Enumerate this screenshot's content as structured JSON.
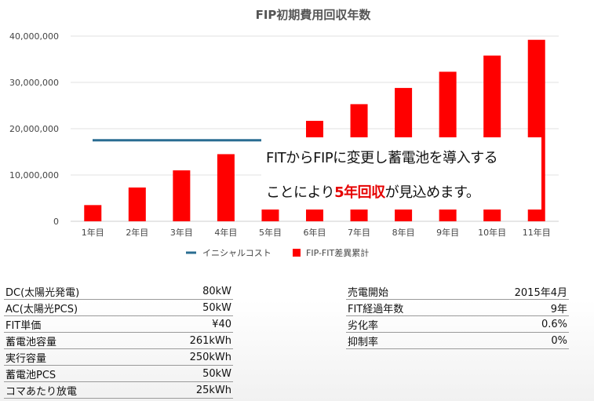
{
  "chart_data": {
    "type": "bar",
    "title": "FIP初期費用回収年数",
    "categories": [
      "1年目",
      "2年目",
      "3年目",
      "4年目",
      "5年目",
      "6年目",
      "7年目",
      "8年目",
      "9年目",
      "10年目",
      "11年目"
    ],
    "series": [
      {
        "name": "FIP-FIT差異累計",
        "type": "bar",
        "color": "#ff0000",
        "values": [
          3500000,
          7300000,
          11000000,
          14500000,
          18100000,
          21700000,
          25300000,
          28800000,
          32300000,
          35800000,
          39200000
        ]
      },
      {
        "name": "イニシャルコスト",
        "type": "line",
        "color": "#2a6d92",
        "value": 17500000
      }
    ],
    "y_ticks": [
      "0",
      "10,000,000",
      "20,000,000",
      "30,000,000",
      "40,000,000"
    ],
    "ylim": [
      0,
      40000000
    ],
    "grid": true,
    "legend_position": "bottom"
  },
  "annotation": {
    "line1": "FITからFIPに変更し蓄電池を導入する",
    "line2_before": "ことにより",
    "line2_highlight": "5年回収",
    "line2_after": "が見込めます。"
  },
  "specs_left": [
    {
      "label": "DC(太陽光発電)",
      "value": "80kW"
    },
    {
      "label": "AC(太陽光PCS)",
      "value": "50kW"
    },
    {
      "label": "FIT単価",
      "value": "¥40"
    },
    {
      "label": "蓄電池容量",
      "value": "261kWh"
    },
    {
      "label": "実行容量",
      "value": "250kWh"
    },
    {
      "label": "蓄電池PCS",
      "value": "50kW"
    },
    {
      "label": "コマあたり放電",
      "value": "25kWh"
    }
  ],
  "specs_right": [
    {
      "label": "売電開始",
      "value": "2015年4月"
    },
    {
      "label": "FIT経過年数",
      "value": "9年"
    },
    {
      "label": "劣化率",
      "value": "0.6%"
    },
    {
      "label": "抑制率",
      "value": "0%"
    }
  ]
}
